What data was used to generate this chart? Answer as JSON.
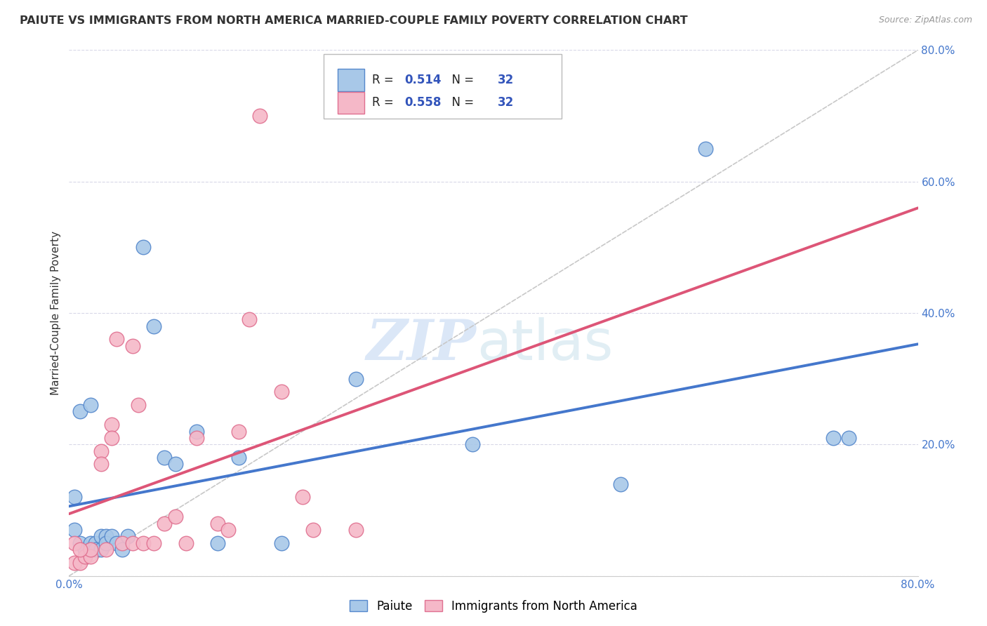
{
  "title": "PAIUTE VS IMMIGRANTS FROM NORTH AMERICA MARRIED-COUPLE FAMILY POVERTY CORRELATION CHART",
  "source": "Source: ZipAtlas.com",
  "ylabel": "Married-Couple Family Poverty",
  "xlim": [
    0.0,
    0.8
  ],
  "ylim": [
    0.0,
    0.8
  ],
  "xticks": [
    0.0,
    0.2,
    0.4,
    0.6,
    0.8
  ],
  "yticks": [
    0.0,
    0.2,
    0.4,
    0.6,
    0.8
  ],
  "xtick_labels": [
    "0.0%",
    "",
    "",
    "",
    "80.0%"
  ],
  "ytick_labels": [
    "",
    "20.0%",
    "40.0%",
    "60.0%",
    "80.0%"
  ],
  "legend_labels": [
    "Paiute",
    "Immigrants from North America"
  ],
  "paiute_color": "#a8c8e8",
  "immigrant_color": "#f5b8c8",
  "paiute_edge_color": "#5588cc",
  "immigrant_edge_color": "#e07090",
  "paiute_line_color": "#4477cc",
  "immigrant_line_color": "#dd5577",
  "diagonal_color": "#c8c8c8",
  "r_paiute": 0.514,
  "n_paiute": 32,
  "r_immigrant": 0.558,
  "n_immigrant": 32,
  "paiute_x": [
    0.005,
    0.01,
    0.015,
    0.02,
    0.02,
    0.025,
    0.025,
    0.03,
    0.03,
    0.035,
    0.035,
    0.04,
    0.045,
    0.05,
    0.055,
    0.01,
    0.02,
    0.07,
    0.08,
    0.09,
    0.1,
    0.12,
    0.14,
    0.16,
    0.2,
    0.27,
    0.38,
    0.52,
    0.6,
    0.72,
    0.735,
    0.005
  ],
  "paiute_y": [
    0.07,
    0.05,
    0.04,
    0.05,
    0.04,
    0.05,
    0.04,
    0.06,
    0.04,
    0.06,
    0.05,
    0.06,
    0.05,
    0.04,
    0.06,
    0.25,
    0.26,
    0.5,
    0.38,
    0.18,
    0.17,
    0.22,
    0.05,
    0.18,
    0.05,
    0.3,
    0.2,
    0.14,
    0.65,
    0.21,
    0.21,
    0.12
  ],
  "immigrant_x": [
    0.005,
    0.01,
    0.015,
    0.02,
    0.02,
    0.03,
    0.03,
    0.035,
    0.04,
    0.04,
    0.045,
    0.05,
    0.06,
    0.06,
    0.065,
    0.07,
    0.08,
    0.09,
    0.1,
    0.11,
    0.12,
    0.14,
    0.15,
    0.16,
    0.17,
    0.18,
    0.2,
    0.22,
    0.23,
    0.27,
    0.005,
    0.01
  ],
  "immigrant_y": [
    0.02,
    0.02,
    0.03,
    0.03,
    0.04,
    0.19,
    0.17,
    0.04,
    0.23,
    0.21,
    0.36,
    0.05,
    0.35,
    0.05,
    0.26,
    0.05,
    0.05,
    0.08,
    0.09,
    0.05,
    0.21,
    0.08,
    0.07,
    0.22,
    0.39,
    0.7,
    0.28,
    0.12,
    0.07,
    0.07,
    0.05,
    0.04
  ],
  "watermark_zip": "ZIP",
  "watermark_atlas": "atlas",
  "background_color": "#ffffff",
  "grid_color": "#d8d8e8",
  "tick_color": "#4477cc",
  "text_color": "#333333"
}
